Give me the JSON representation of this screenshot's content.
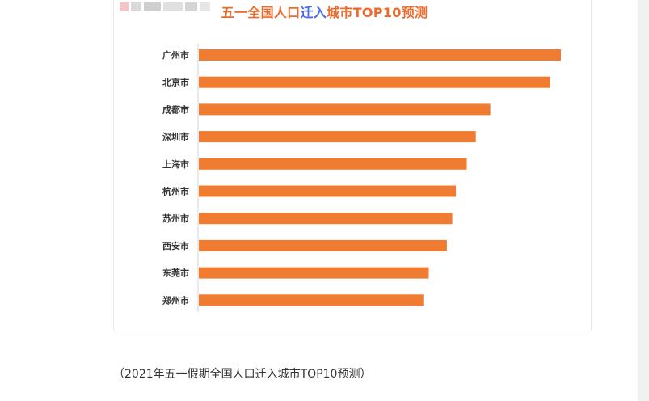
{
  "logo": {
    "colors": [
      "#f3c6c6",
      "#d9d9d9",
      "#cfcfcf",
      "#e0e0e0",
      "#d5d5d5",
      "#e6e6e6"
    ]
  },
  "chart_data": {
    "type": "bar",
    "orientation": "horizontal",
    "title_parts": [
      "五一全国人口",
      "迁入",
      "城市TOP10预测"
    ],
    "title_colors": [
      "#ee6a2c",
      "#4a6be0",
      "#ee6a2c"
    ],
    "categories": [
      "广州市",
      "北京市",
      "成都市",
      "深圳市",
      "上海市",
      "杭州市",
      "苏州市",
      "西安市",
      "东莞市",
      "郑州市"
    ],
    "values": [
      100,
      97,
      80.5,
      76.5,
      74,
      71,
      70,
      68.5,
      63.5,
      62
    ],
    "bar_color": "#ef7c30",
    "xlim": [
      0,
      100
    ],
    "grid": false,
    "legend": "none",
    "value_labels": false
  },
  "caption": "（2021年五一假期全国人口迁入城市TOP10预测）"
}
